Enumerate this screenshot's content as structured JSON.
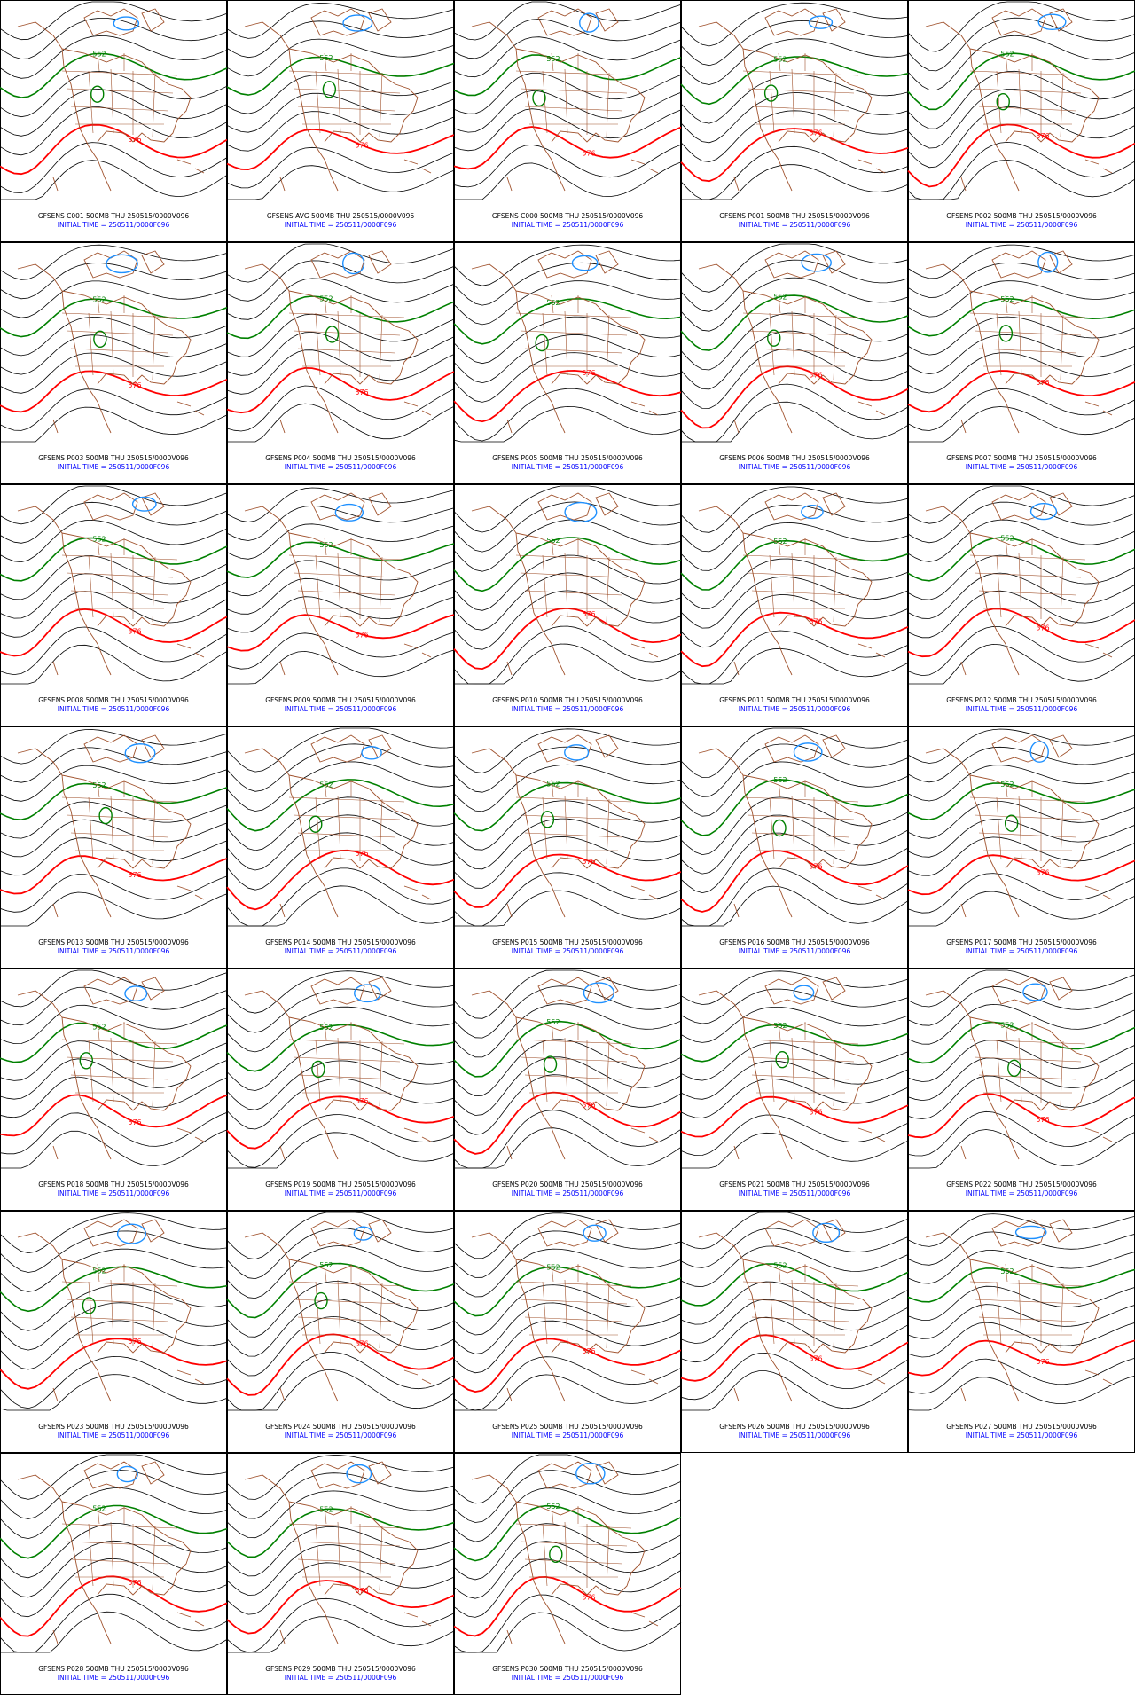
{
  "panels": [
    {
      "title": "GFSENS C001 500MB THU 250515/0000V096",
      "init": "INITIAL TIME = 250511/0000F096",
      "contour_labels": [
        "552",
        "576"
      ]
    },
    {
      "title": "GFSENS AVG 500MB THU 250515/0000V096",
      "init": "INITIAL TIME = 250511/0000F096",
      "contour_labels": [
        "552",
        "576"
      ]
    },
    {
      "title": "GFSENS C000 500MB THU 250515/0000V096",
      "init": "INITIAL TIME = 250511/0000F096",
      "contour_labels": [
        "552",
        "576"
      ]
    },
    {
      "title": "GFSENS P001 500MB THU 250515/0000V096",
      "init": "INITIAL TIME = 250511/0000F096",
      "contour_labels": [
        "552",
        "576"
      ]
    },
    {
      "title": "GFSENS P002 500MB THU 250515/0000V096",
      "init": "INITIAL TIME = 250511/0000F096",
      "contour_labels": [
        "552",
        "576"
      ]
    },
    {
      "title": "GFSENS P003 500MB THU 250515/0000V096",
      "init": "INITIAL TIME = 250511/0000F096",
      "contour_labels": [
        "552",
        "576"
      ]
    },
    {
      "title": "GFSENS P004 500MB THU 250515/0000V096",
      "init": "INITIAL TIME = 250511/0000F096",
      "contour_labels": [
        "552",
        "576"
      ]
    },
    {
      "title": "GFSENS P005 500MB THU 250515/0000V096",
      "init": "INITIAL TIME = 250511/0000F096",
      "contour_labels": [
        "552",
        "576"
      ]
    },
    {
      "title": "GFSENS P006 500MB THU 250515/0000V096",
      "init": "INITIAL TIME = 250511/0000F096",
      "contour_labels": [
        "552",
        "576"
      ]
    },
    {
      "title": "GFSENS P007 500MB THU 250515/0000V096",
      "init": "INITIAL TIME = 250511/0000F096",
      "contour_labels": [
        "552",
        "576"
      ]
    },
    {
      "title": "GFSENS P008 500MB THU 250515/0000V096",
      "init": "INITIAL TIME = 250511/0000F096",
      "contour_labels": [
        "552",
        "576"
      ]
    },
    {
      "title": "GFSENS P009 500MB THU 250515/0000V096",
      "init": "INITIAL TIME = 250511/0000F096",
      "contour_labels": [
        "552",
        "576"
      ]
    },
    {
      "title": "GFSENS P010 500MB THU 250515/0000V096",
      "init": "INITIAL TIME = 250511/0000F096",
      "contour_labels": [
        "552",
        "576"
      ]
    },
    {
      "title": "GFSENS P011 500MB THU 250515/0000V096",
      "init": "INITIAL TIME = 250511/0000F096",
      "contour_labels": [
        "552",
        "576"
      ]
    },
    {
      "title": "GFSENS P012 500MB THU 250515/0000V096",
      "init": "INITIAL TIME = 250511/0000F096",
      "contour_labels": [
        "552",
        "576"
      ]
    },
    {
      "title": "GFSENS P013 500MB THU 250515/0000V096",
      "init": "INITIAL TIME = 250511/0000F096",
      "contour_labels": [
        "552",
        "576"
      ]
    },
    {
      "title": "GFSENS P014 500MB THU 250515/0000V096",
      "init": "INITIAL TIME = 250511/0000F096",
      "contour_labels": [
        "552",
        "576"
      ]
    },
    {
      "title": "GFSENS P015 500MB THU 250515/0000V096",
      "init": "INITIAL TIME = 250511/0000F096",
      "contour_labels": [
        "552",
        "576"
      ]
    },
    {
      "title": "GFSENS P016 500MB THU 250515/0000V096",
      "init": "INITIAL TIME = 250511/0000F096",
      "contour_labels": [
        "552",
        "576"
      ]
    },
    {
      "title": "GFSENS P017 500MB THU 250515/0000V096",
      "init": "INITIAL TIME = 250511/0000F096",
      "contour_labels": [
        "552",
        "576"
      ]
    },
    {
      "title": "GFSENS P018 500MB THU 250515/0000V096",
      "init": "INITIAL TIME = 250511/0000F096",
      "contour_labels": [
        "552",
        "576"
      ]
    },
    {
      "title": "GFSENS P019 500MB THU 250515/0000V096",
      "init": "INITIAL TIME = 250511/0000F096",
      "contour_labels": [
        "552",
        "576"
      ]
    },
    {
      "title": "GFSENS P020 500MB THU 250515/0000V096",
      "init": "INITIAL TIME = 250511/0000F096",
      "contour_labels": [
        "552",
        "576"
      ]
    },
    {
      "title": "GFSENS P021 500MB THU 250515/0000V096",
      "init": "INITIAL TIME = 250511/0000F096",
      "contour_labels": [
        "552",
        "576"
      ]
    },
    {
      "title": "GFSENS P022 500MB THU 250515/0000V096",
      "init": "INITIAL TIME = 250511/0000F096",
      "contour_labels": [
        "552",
        "576"
      ]
    },
    {
      "title": "GFSENS P023 500MB THU 250515/0000V096",
      "init": "INITIAL TIME = 250511/0000F096",
      "contour_labels": [
        "552",
        "576"
      ]
    },
    {
      "title": "GFSENS P024 500MB THU 250515/0000V096",
      "init": "INITIAL TIME = 250511/0000F096",
      "contour_labels": [
        "552",
        "576"
      ]
    },
    {
      "title": "GFSENS P025 500MB THU 250515/0000V096",
      "init": "INITIAL TIME = 250511/0000F096",
      "contour_labels": [
        "552",
        "576"
      ]
    },
    {
      "title": "GFSENS P026 500MB THU 250515/0000V096",
      "init": "INITIAL TIME = 250511/0000F096",
      "contour_labels": [
        "552",
        "576"
      ]
    },
    {
      "title": "GFSENS P027 500MB THU 250515/0000V096",
      "init": "INITIAL TIME = 250511/0000F096",
      "contour_labels": [
        "552",
        "576"
      ]
    },
    {
      "title": "GFSENS P028 500MB THU 250515/0000V096",
      "init": "INITIAL TIME = 250511/0000F096",
      "contour_labels": [
        "552",
        "576"
      ]
    },
    {
      "title": "GFSENS P029 500MB THU 250515/0000V096",
      "init": "INITIAL TIME = 250511/0000F096",
      "contour_labels": [
        "552",
        "576"
      ]
    },
    {
      "title": "GFSENS P030 500MB THU 250515/0000V096",
      "init": "INITIAL TIME = 250511/0000F096",
      "contour_labels": [
        "552",
        "576"
      ]
    }
  ]
}
